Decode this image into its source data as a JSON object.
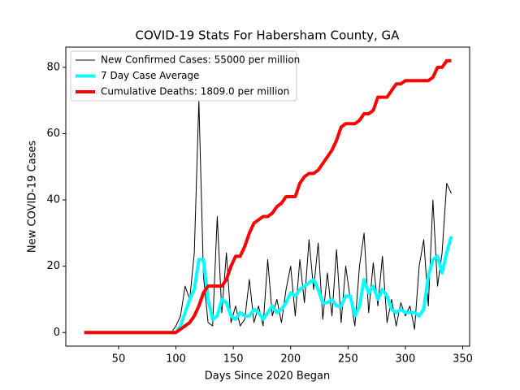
{
  "chart_data": {
    "type": "line",
    "title": "COVID-19 Stats For Habersham County, GA",
    "xlabel": "Days Since 2020 Began",
    "ylabel": "New COVID-19 Cases",
    "x": [
      20,
      24,
      28,
      32,
      36,
      40,
      44,
      48,
      52,
      56,
      60,
      64,
      68,
      72,
      76,
      80,
      84,
      88,
      92,
      96,
      100,
      104,
      108,
      112,
      116,
      120,
      124,
      128,
      132,
      136,
      140,
      144,
      148,
      152,
      156,
      160,
      164,
      168,
      172,
      176,
      180,
      184,
      188,
      192,
      196,
      200,
      204,
      208,
      212,
      216,
      220,
      224,
      228,
      232,
      236,
      240,
      244,
      248,
      252,
      256,
      260,
      264,
      268,
      272,
      276,
      280,
      284,
      288,
      292,
      296,
      300,
      304,
      308,
      312,
      316,
      320,
      324,
      328,
      332,
      336,
      340
    ],
    "series": [
      {
        "name": "New Confirmed Cases: 55000 per million",
        "color": "#000000",
        "width": 1,
        "values": [
          0,
          0,
          0,
          0,
          0,
          0,
          0,
          0,
          0,
          0,
          0,
          0,
          0,
          0,
          0,
          0,
          0,
          0,
          0,
          0,
          2,
          5,
          14,
          10,
          24,
          70,
          17,
          3,
          2,
          35,
          6,
          24,
          3,
          8,
          2,
          4,
          16,
          3,
          8,
          2,
          22,
          5,
          10,
          3,
          13,
          20,
          5,
          22,
          9,
          28,
          13,
          27,
          4,
          18,
          5,
          25,
          3,
          20,
          10,
          2,
          20,
          30,
          6,
          21,
          8,
          23,
          3,
          10,
          2,
          9,
          5,
          8,
          1,
          20,
          28,
          8,
          40,
          14,
          24,
          45,
          42
        ]
      },
      {
        "name": "7 Day Case Average",
        "color": "#00ffff",
        "width": 4,
        "values": [
          0,
          0,
          0,
          0,
          0,
          0,
          0,
          0,
          0,
          0,
          0,
          0,
          0,
          0,
          0,
          0,
          0,
          0,
          0,
          0,
          0,
          2,
          6,
          10,
          13,
          22,
          22,
          10,
          4,
          5,
          10,
          9,
          5,
          4,
          6,
          5,
          5,
          7,
          6,
          4,
          6,
          8,
          6,
          7,
          9,
          12,
          11,
          13,
          14,
          15,
          16,
          13,
          9,
          9,
          10,
          8,
          8,
          11,
          11,
          5,
          8,
          16,
          12,
          14,
          10,
          13,
          11,
          7,
          6,
          7,
          6,
          6,
          6,
          5,
          7,
          17,
          22,
          23,
          18,
          24,
          29
        ]
      },
      {
        "name": "Cumulative Deaths: 1809.0 per million",
        "color": "#ff0000",
        "width": 4,
        "values": [
          0,
          0,
          0,
          0,
          0,
          0,
          0,
          0,
          0,
          0,
          0,
          0,
          0,
          0,
          0,
          0,
          0,
          0,
          0,
          0,
          0,
          1,
          2,
          3,
          5,
          8,
          12,
          14,
          14,
          14,
          14,
          16,
          20,
          23,
          23,
          26,
          30,
          33,
          34,
          35,
          35,
          36,
          38,
          39,
          41,
          41,
          41,
          45,
          47,
          48,
          48,
          49,
          51,
          53,
          55,
          58,
          62,
          63,
          63,
          63,
          64,
          66,
          66,
          67,
          71,
          71,
          71,
          73,
          75,
          75,
          76,
          76,
          76,
          76,
          76,
          76,
          77,
          80,
          80,
          82,
          82
        ]
      }
    ],
    "xlim": [
      4,
      356
    ],
    "ylim": [
      -4.1,
      86.1
    ],
    "xticks": [
      50,
      100,
      150,
      200,
      250,
      300,
      350
    ],
    "yticks": [
      0,
      20,
      40,
      60,
      80
    ],
    "legend": "upper-left"
  }
}
